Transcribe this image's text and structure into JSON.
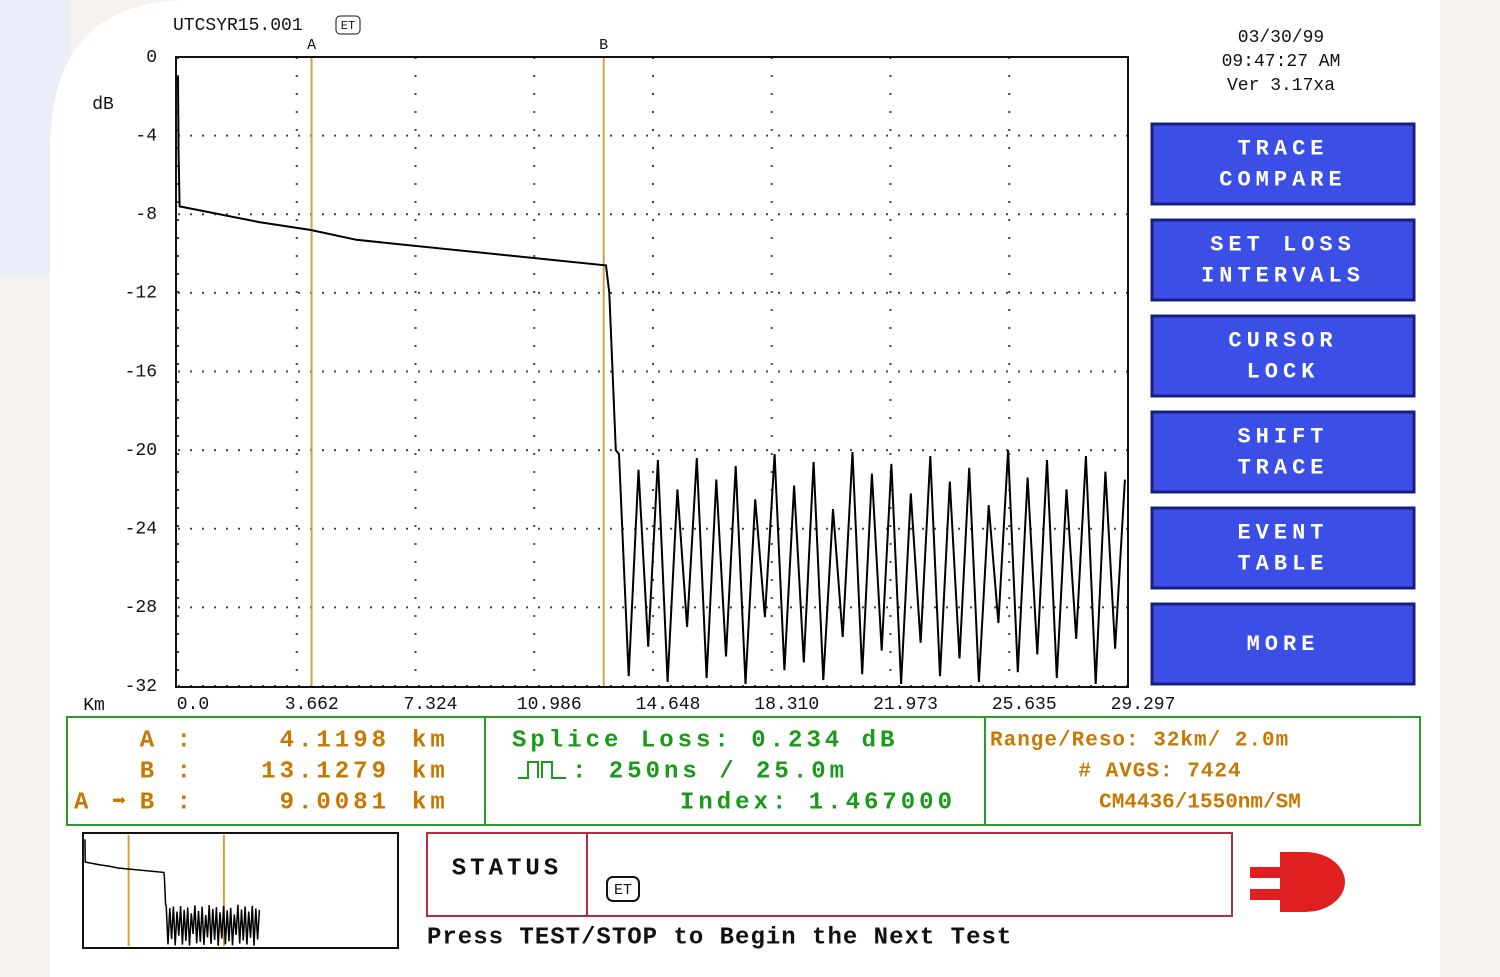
{
  "header": {
    "file": "UTCSYR15.001",
    "badge": "ET",
    "date": "03/30/99",
    "time": "09:47:27 AM",
    "version": "Ver 3.17xa"
  },
  "chart_data": {
    "type": "line",
    "y_unit": "dB",
    "x_unit": "Km",
    "xlim": [
      0,
      29.297
    ],
    "ylim": [
      -32,
      0
    ],
    "xticks": [
      {
        "value": 0,
        "label": "0.0"
      },
      3.662,
      7.324,
      10.986,
      14.648,
      {
        "value": 18.31,
        "label": "18.310"
      },
      21.973,
      25.635,
      29.297
    ],
    "yticks": [
      0,
      -4,
      -8,
      -12,
      -16,
      -20,
      -24,
      -28,
      -32
    ],
    "grid": true,
    "cursors": [
      {
        "name": "A",
        "x": 4.1198,
        "color": "#d4a040"
      },
      {
        "name": "B",
        "x": 13.1279,
        "color": "#d4a040"
      }
    ],
    "series": [
      {
        "color": "#000000",
        "x": [
          0,
          0.02,
          0.05,
          2.5,
          4.1,
          5.5,
          13.2,
          13.3,
          13.5,
          13.6,
          13.9,
          14.2,
          14.5,
          14.8,
          15.1,
          15.4,
          15.7,
          16.0,
          16.3,
          16.6,
          16.9,
          17.2,
          17.5,
          17.8,
          18.1,
          18.4,
          18.7,
          19.0,
          19.3,
          19.6,
          19.9,
          20.2,
          20.5,
          20.8,
          21.1,
          21.4,
          21.7,
          22.0,
          22.3,
          22.6,
          22.9,
          23.2,
          23.5,
          23.8,
          24.1,
          24.4,
          24.7,
          25.0,
          25.3,
          25.6,
          25.9,
          26.2,
          26.5,
          26.8,
          27.1,
          27.4,
          27.7,
          28.0,
          28.3,
          28.6,
          28.9,
          29.2
        ],
        "values": [
          -1,
          -5,
          -7.6,
          -8.4,
          -8.8,
          -9.3,
          -10.6,
          -12,
          -20,
          -20.2,
          -31.5,
          -21,
          -30,
          -20.5,
          -31.8,
          -22,
          -29,
          -20.4,
          -31.6,
          -21.5,
          -30.5,
          -20.8,
          -31.9,
          -22.5,
          -28.5,
          -20.2,
          -31.2,
          -21.8,
          -30.8,
          -20.6,
          -31.7,
          -23,
          -29.5,
          -20.1,
          -31.4,
          -21.2,
          -30.2,
          -20.7,
          -31.9,
          -22.2,
          -29.8,
          -20.3,
          -31.5,
          -21.6,
          -30.6,
          -20.9,
          -31.8,
          -22.8,
          -28.8,
          -20,
          -31.3,
          -21.4,
          -30.4,
          -20.5,
          -31.6,
          -22,
          -29.6,
          -20.3,
          -31.9,
          -21.1,
          -30.1,
          -21.5
        ]
      }
    ]
  },
  "buttons": [
    [
      "TRACE",
      "COMPARE"
    ],
    [
      "SET LOSS",
      "INTERVALS"
    ],
    [
      "CURSOR",
      "LOCK"
    ],
    [
      "SHIFT",
      "TRACE"
    ],
    [
      "EVENT",
      "TABLE"
    ],
    [
      "MORE"
    ]
  ],
  "info": {
    "cursors": [
      {
        "label": "A :",
        "value": "4.1198",
        "unit": "km"
      },
      {
        "label": "B :",
        "value": "13.1279",
        "unit": "km"
      },
      {
        "from": "A",
        "arrow": "➡",
        "label": "B :",
        "value": "9.0081",
        "unit": "km"
      }
    ],
    "splice": "Splice Loss: 0.234 dB",
    "pulse": ": 250ns / 25.0m",
    "index": "Index: 1.467000",
    "range": "Range/Reso: 32km/ 2.0m",
    "avgs": "# AVGS: 7424",
    "fiber": "CM4436/1550nm/SM"
  },
  "status": {
    "title": "STATUS",
    "badge": "ET",
    "message": "Press TEST/STOP to Begin the Next Test"
  }
}
